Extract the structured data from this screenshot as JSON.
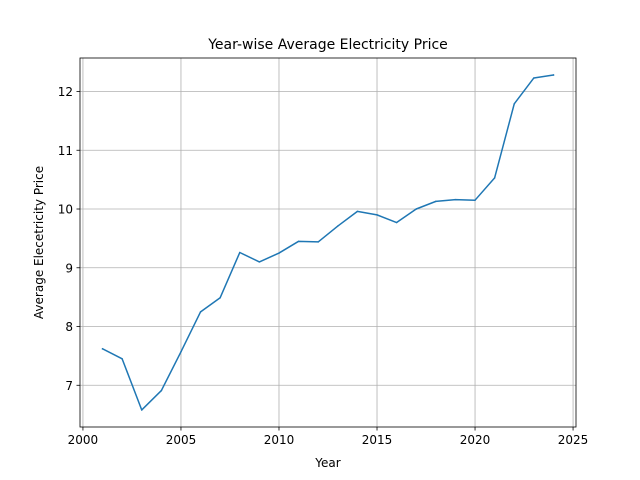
{
  "chart_data": {
    "type": "line",
    "title": "Year-wise Average Electricity Price",
    "xlabel": "Year",
    "ylabel": "Average Elecetricity Price",
    "xlim": [
      1999.85,
      2025.15
    ],
    "ylim": [
      6.29,
      12.57
    ],
    "xticks": [
      2000,
      2005,
      2010,
      2015,
      2020,
      2025
    ],
    "yticks": [
      7,
      8,
      9,
      10,
      11,
      12
    ],
    "grid": true,
    "series": [
      {
        "color": "#1f77b4",
        "x": [
          2001,
          2002,
          2003,
          2004,
          2005,
          2006,
          2007,
          2008,
          2009,
          2010,
          2011,
          2012,
          2013,
          2014,
          2015,
          2016,
          2017,
          2018,
          2019,
          2020,
          2021,
          2022,
          2023,
          2024
        ],
        "values": [
          7.62,
          7.45,
          6.58,
          6.91,
          7.57,
          8.25,
          8.49,
          9.26,
          9.1,
          9.25,
          9.45,
          9.44,
          9.71,
          9.96,
          9.9,
          9.77,
          10.0,
          10.13,
          10.16,
          10.15,
          10.53,
          11.79,
          12.23,
          12.28
        ]
      }
    ]
  }
}
